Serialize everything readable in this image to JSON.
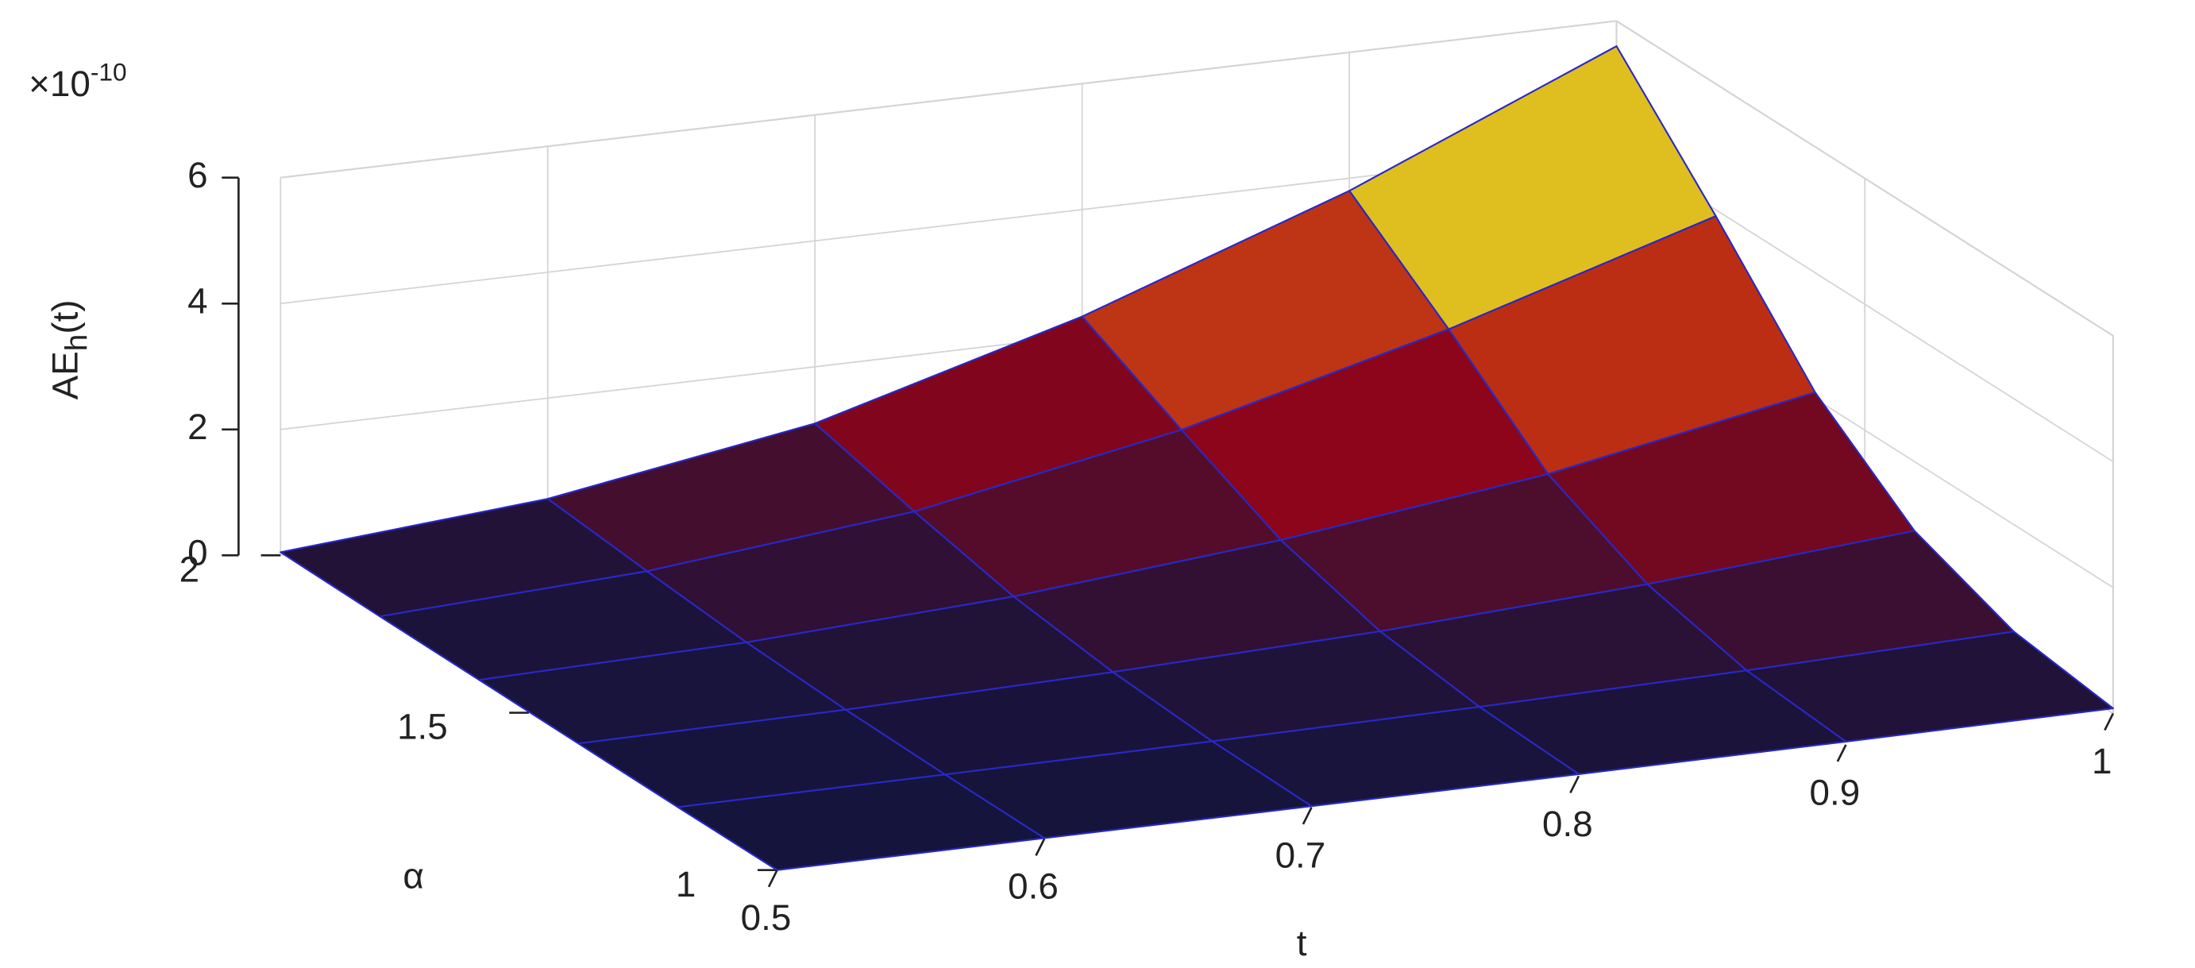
{
  "chart_data": {
    "type": "surface",
    "xlabel": "t",
    "ylabel": "α",
    "zlabel": {
      "main": "AE",
      "sub": "h",
      "tail": "(t)"
    },
    "zmultiplier": {
      "base": "×10",
      "exponent": "-10"
    },
    "x": [
      0.5,
      0.6,
      0.7,
      0.8,
      0.9,
      1
    ],
    "y": [
      1,
      1.2,
      1.4,
      1.6,
      1.8,
      2
    ],
    "z": [
      [
        0,
        0.01,
        0.02,
        0.03,
        0.05,
        0.08
      ],
      [
        0,
        0.02,
        0.05,
        0.1,
        0.18,
        0.3
      ],
      [
        0.01,
        0.05,
        0.15,
        0.3,
        0.55,
        0.9
      ],
      [
        0.02,
        0.12,
        0.35,
        0.75,
        1.3,
        2.1
      ],
      [
        0.03,
        0.25,
        0.7,
        1.5,
        2.6,
        3.9
      ],
      [
        0.05,
        0.4,
        1.1,
        2.3,
        3.8,
        5.6
      ]
    ],
    "xlim": [
      0.5,
      1
    ],
    "ylim": [
      1,
      2
    ],
    "zlim": [
      0,
      6
    ],
    "xticks": [
      0.5,
      0.6,
      0.7,
      0.8,
      0.9,
      1
    ],
    "yticks": [
      1,
      1.5,
      2
    ],
    "zticks": [
      0,
      2,
      4,
      6
    ],
    "edge_color": "#2828c8",
    "colormap": [
      "#14143c",
      "#b00010",
      "#e0c020",
      "#c8c8d0"
    ],
    "grid": true
  }
}
